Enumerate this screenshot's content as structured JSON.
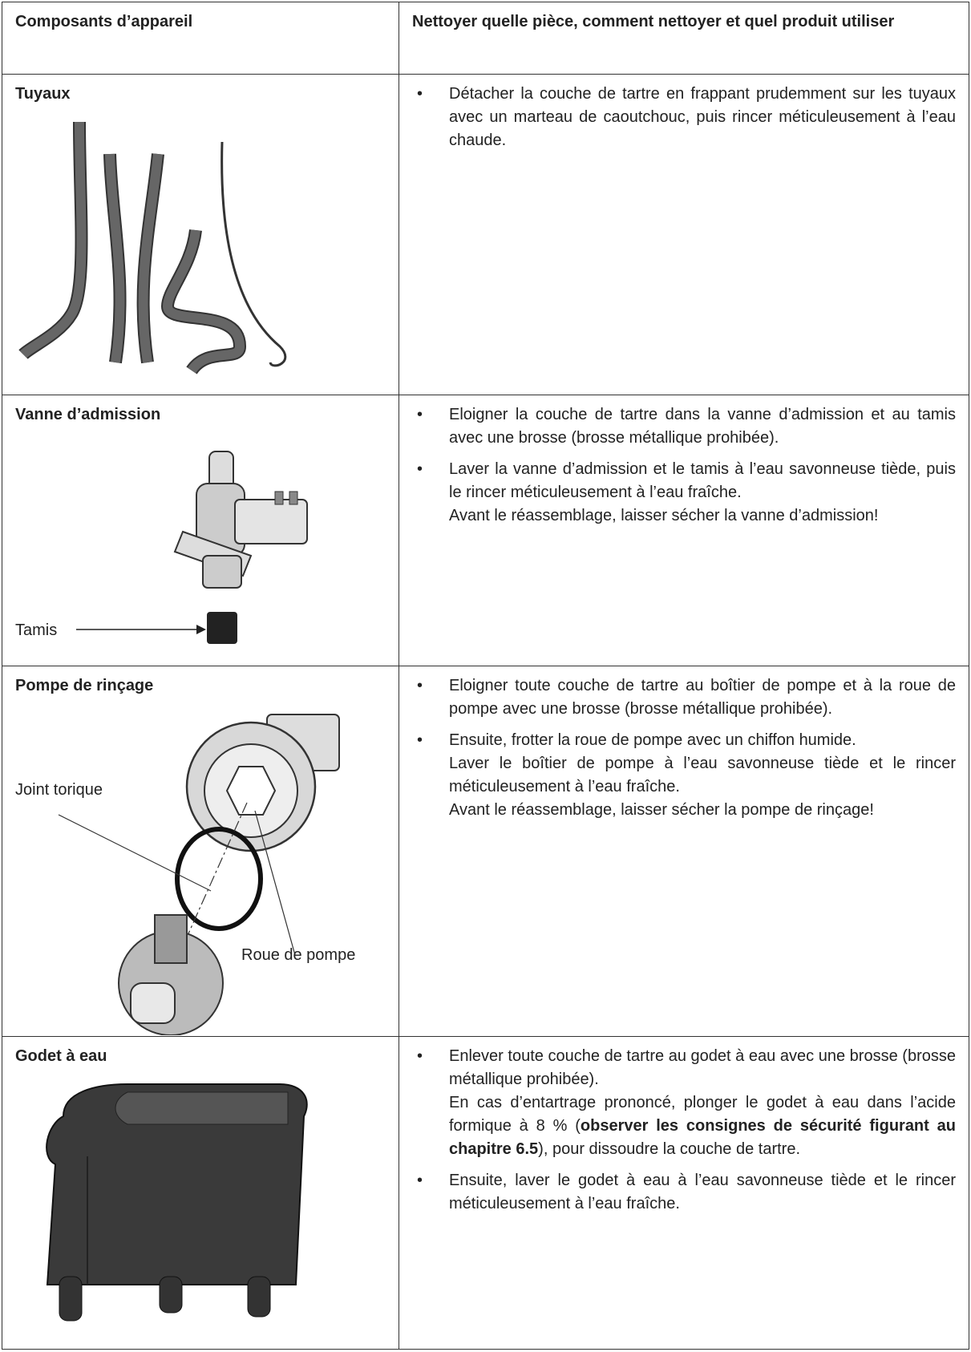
{
  "header": [
    "Composants d’appareil",
    "Nettoyer quelle pièce, comment nettoyer et quel produit utiliser"
  ],
  "rows": [
    {
      "component": "Tuyaux",
      "bullets": [
        [
          "Détacher la couche de tartre en frappant prudemment sur les tuyaux avec un marteau de caoutchouc, puis rincer méticuleusement à l’eau chaude."
        ]
      ]
    },
    {
      "component": "Vanne d’admission",
      "callouts": [
        "Tamis"
      ],
      "bullets": [
        [
          "Eloigner la couche de tartre dans la vanne d’admission et au tamis avec une brosse (brosse métallique prohibée)."
        ],
        [
          "Laver la vanne d’admission et le tamis à l’eau savonneuse tiède, puis le rincer méticuleusement à l’eau fraîche.",
          "Avant le réassemblage, laisser sécher la vanne d’admission!"
        ]
      ]
    },
    {
      "component": "Pompe de rinçage",
      "callouts": [
        "Joint torique",
        "Roue de pompe"
      ],
      "bullets": [
        [
          "Eloigner toute couche de tartre au boîtier de pompe et à la roue de pompe avec une brosse (brosse métallique prohibée)."
        ],
        [
          "Ensuite, frotter la roue de pompe avec un chiffon humide.",
          "Laver le boîtier de pompe à l’eau savonneuse tiède et le rincer méticuleusement à l’eau fraîche.",
          "Avant le réassemblage, laisser sécher la pompe de rinçage!"
        ]
      ]
    },
    {
      "component": "Godet à eau",
      "bullets": [
        [
          "Enlever toute couche de tartre au godet à eau avec une brosse (brosse métallique prohibée).",
          [
            "En cas d’entartrage prononcé, plonger le godet à eau dans l’acide formique à 8 % (",
            "observer les consignes de sécurité figurant au chapitre 6.5",
            "), pour dissoudre la couche de tartre."
          ]
        ],
        [
          "Ensuite, laver le godet à eau à l’eau savonneuse tiède et le rincer méticuleusement à l’eau fraîche."
        ]
      ]
    }
  ]
}
